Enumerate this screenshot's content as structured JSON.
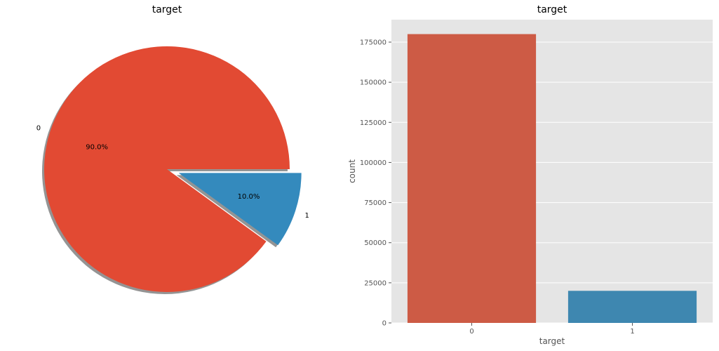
{
  "chart_data": [
    {
      "type": "pie",
      "title": "target",
      "categories": [
        "0",
        "1"
      ],
      "values": [
        90.0,
        10.0
      ],
      "autopct_labels": [
        "90.0%",
        "10.0%"
      ],
      "explode": [
        0,
        0.1
      ],
      "shadow": true,
      "colors": [
        "#E24A33",
        "#348ABD"
      ]
    },
    {
      "type": "bar",
      "title": "target",
      "categories": [
        "0",
        "1"
      ],
      "values": [
        180000,
        20000
      ],
      "xlabel": "target",
      "ylabel": "count",
      "ylim": [
        0,
        189000
      ],
      "yticks": [
        0,
        25000,
        50000,
        75000,
        100000,
        125000,
        150000,
        175000
      ],
      "grid": true,
      "colors": [
        "#CD5B45",
        "#3E87B0"
      ],
      "background": "#E5E5E5"
    }
  ]
}
